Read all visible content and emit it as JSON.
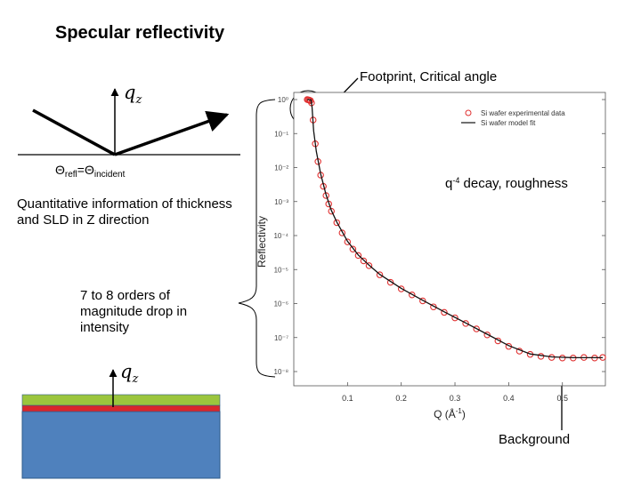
{
  "title": "Specular reflectivity",
  "geometry": {
    "qz_label": "q",
    "qz_sub": "z",
    "theta_main1": "Θ",
    "theta_sub1": "refl",
    "theta_eq": "=Θ",
    "theta_sub2": "incident"
  },
  "labels": {
    "quantitative": "Quantitative information of thickness and SLD in Z direction",
    "orders": "7 to 8 orders of magnitude drop in intensity",
    "footprint": "Footprint, Critical angle",
    "decay_pre": "q",
    "decay_sup": "-4",
    "decay_post": " decay, roughness",
    "background": "Background"
  },
  "colors": {
    "data_red": "#e03030",
    "fit_black": "#111111",
    "layer_green": "#9bc53d",
    "layer_red": "#d9262b",
    "substrate_blue": "#4f81bd"
  },
  "chart_data": {
    "type": "scatter",
    "xlabel": "Q (Å",
    "xlabel_sup": "-1",
    "xlabel_close": ")",
    "ylabel": "Reflectivity",
    "xlim": [
      0.0,
      0.58
    ],
    "ylim_log10": [
      -8,
      0
    ],
    "y_scale": "log",
    "x_ticks": [
      "0.1",
      "0.2",
      "0.3",
      "0.4",
      "0.5"
    ],
    "x_tick_values": [
      0.1,
      0.2,
      0.3,
      0.4,
      0.5
    ],
    "y_ticks": [
      "10⁰",
      "10⁻¹",
      "10⁻²",
      "10⁻³",
      "10⁻⁴",
      "10⁻⁵",
      "10⁻⁶",
      "10⁻⁷",
      "10⁻⁸"
    ],
    "y_tick_exponents": [
      0,
      -1,
      -2,
      -3,
      -4,
      -5,
      -6,
      -7,
      -8
    ],
    "legend_position": "top-right",
    "series": [
      {
        "name": "Si wafer experimental data",
        "style": "markers",
        "points": [
          [
            0.025,
            1.0
          ],
          [
            0.027,
            0.98
          ],
          [
            0.029,
            0.96
          ],
          [
            0.031,
            0.93
          ],
          [
            0.033,
            0.8
          ],
          [
            0.036,
            0.25
          ],
          [
            0.04,
            0.05
          ],
          [
            0.045,
            0.015
          ],
          [
            0.05,
            0.006
          ],
          [
            0.055,
            0.0028
          ],
          [
            0.06,
            0.0015
          ],
          [
            0.065,
            0.00085
          ],
          [
            0.07,
            0.00052
          ],
          [
            0.08,
            0.00024
          ],
          [
            0.09,
            0.00012
          ],
          [
            0.1,
            6.5e-05
          ],
          [
            0.11,
            4e-05
          ],
          [
            0.12,
            2.6e-05
          ],
          [
            0.13,
            1.8e-05
          ],
          [
            0.14,
            1.3e-05
          ],
          [
            0.16,
            7e-06
          ],
          [
            0.18,
            4.2e-06
          ],
          [
            0.2,
            2.7e-06
          ],
          [
            0.22,
            1.8e-06
          ],
          [
            0.24,
            1.2e-06
          ],
          [
            0.26,
            8e-07
          ],
          [
            0.28,
            5.5e-07
          ],
          [
            0.3,
            3.8e-07
          ],
          [
            0.32,
            2.6e-07
          ],
          [
            0.34,
            1.8e-07
          ],
          [
            0.36,
            1.2e-07
          ],
          [
            0.38,
            8e-08
          ],
          [
            0.4,
            5.5e-08
          ],
          [
            0.42,
            4e-08
          ],
          [
            0.44,
            3.2e-08
          ],
          [
            0.46,
            2.8e-08
          ],
          [
            0.48,
            2.6e-08
          ],
          [
            0.5,
            2.5e-08
          ],
          [
            0.52,
            2.5e-08
          ],
          [
            0.54,
            2.6e-08
          ],
          [
            0.56,
            2.5e-08
          ],
          [
            0.575,
            2.6e-08
          ]
        ]
      },
      {
        "name": "Si wafer model fit",
        "style": "line",
        "points": [
          [
            0.025,
            1.0
          ],
          [
            0.032,
            0.98
          ],
          [
            0.034,
            0.6
          ],
          [
            0.037,
            0.12
          ],
          [
            0.042,
            0.03
          ],
          [
            0.05,
            0.0065
          ],
          [
            0.06,
            0.0016
          ],
          [
            0.07,
            0.00055
          ],
          [
            0.08,
            0.00025
          ],
          [
            0.1,
            6.8e-05
          ],
          [
            0.12,
            2.7e-05
          ],
          [
            0.14,
            1.35e-05
          ],
          [
            0.16,
            7.2e-06
          ],
          [
            0.2,
            2.8e-06
          ],
          [
            0.24,
            1.25e-06
          ],
          [
            0.28,
            5.7e-07
          ],
          [
            0.32,
            2.7e-07
          ],
          [
            0.36,
            1.25e-07
          ],
          [
            0.4,
            5.8e-08
          ],
          [
            0.44,
            3.3e-08
          ],
          [
            0.48,
            2.7e-08
          ],
          [
            0.52,
            2.55e-08
          ],
          [
            0.575,
            2.55e-08
          ]
        ]
      }
    ]
  }
}
